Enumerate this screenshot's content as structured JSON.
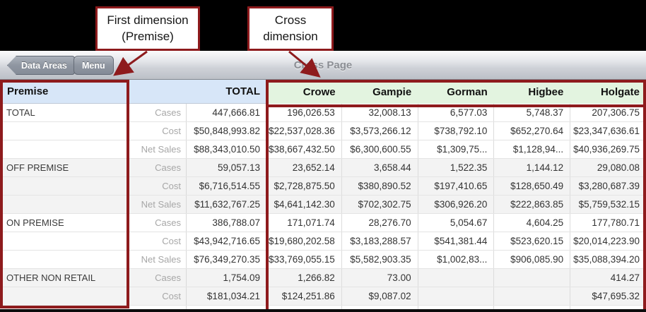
{
  "annotations": {
    "first_dimension": {
      "line1": "First dimension",
      "line2": "(Premise)"
    },
    "cross_dimension": {
      "line1": "Cross",
      "line2": "dimension"
    }
  },
  "toolbar": {
    "back_button": "Data Areas",
    "menu_button": "Menu",
    "title": "Cross Page"
  },
  "table": {
    "dimension_header": "Premise",
    "total_header": "TOTAL",
    "cross_columns": [
      "Crowe",
      "Gampie",
      "Gorman",
      "Higbee",
      "Holgate"
    ],
    "groups": [
      {
        "label": "TOTAL",
        "rows": [
          {
            "measure": "Cases",
            "total": "447,666.81",
            "values": [
              "196,026.53",
              "32,008.13",
              "6,577.03",
              "5,748.37",
              "207,306.75"
            ]
          },
          {
            "measure": "Cost",
            "total": "$50,848,993.82",
            "values": [
              "$22,537,028.36",
              "$3,573,266.12",
              "$738,792.10",
              "$652,270.64",
              "$23,347,636.61"
            ]
          },
          {
            "measure": "Net Sales",
            "total": "$88,343,010.50",
            "values": [
              "$38,667,432.50",
              "$6,300,600.55",
              "$1,309,75...",
              "$1,128,94...",
              "$40,936,269.75"
            ]
          }
        ]
      },
      {
        "label": "OFF PREMISE",
        "rows": [
          {
            "measure": "Cases",
            "total": "59,057.13",
            "values": [
              "23,652.14",
              "3,658.44",
              "1,522.35",
              "1,144.12",
              "29,080.08"
            ]
          },
          {
            "measure": "Cost",
            "total": "$6,716,514.55",
            "values": [
              "$2,728,875.50",
              "$380,890.52",
              "$197,410.65",
              "$128,650.49",
              "$3,280,687.39"
            ]
          },
          {
            "measure": "Net Sales",
            "total": "$11,632,767.25",
            "values": [
              "$4,641,142.30",
              "$702,302.75",
              "$306,926.20",
              "$222,863.85",
              "$5,759,532.15"
            ]
          }
        ]
      },
      {
        "label": "ON PREMISE",
        "rows": [
          {
            "measure": "Cases",
            "total": "386,788.07",
            "values": [
              "171,071.74",
              "28,276.70",
              "5,054.67",
              "4,604.25",
              "177,780.71"
            ]
          },
          {
            "measure": "Cost",
            "total": "$43,942,716.65",
            "values": [
              "$19,680,202.58",
              "$3,183,288.57",
              "$541,381.44",
              "$523,620.15",
              "$20,014,223.90"
            ]
          },
          {
            "measure": "Net Sales",
            "total": "$76,349,270.35",
            "values": [
              "$33,769,055.15",
              "$5,582,903.35",
              "$1,002,83...",
              "$906,085.90",
              "$35,088,394.20"
            ]
          }
        ]
      },
      {
        "label": "OTHER NON RETAIL",
        "rows": [
          {
            "measure": "Cases",
            "total": "1,754.09",
            "values": [
              "1,266.82",
              "73.00",
              "",
              "",
              "414.27"
            ]
          },
          {
            "measure": "Cost",
            "total": "$181,034.21",
            "values": [
              "$124,251.86",
              "$9,087.02",
              "",
              "",
              "$47,695.32"
            ]
          }
        ]
      }
    ]
  },
  "colors": {
    "emphasis_border": "#8e1b1d",
    "dimension_header_bg": "#d7e6f8",
    "cross_header_bg": "#e3f4e0",
    "shaded_row_bg": "#f3f3f3",
    "measure_label_text": "#a7a7a7",
    "toolbar_title_text": "#8b8e94"
  }
}
